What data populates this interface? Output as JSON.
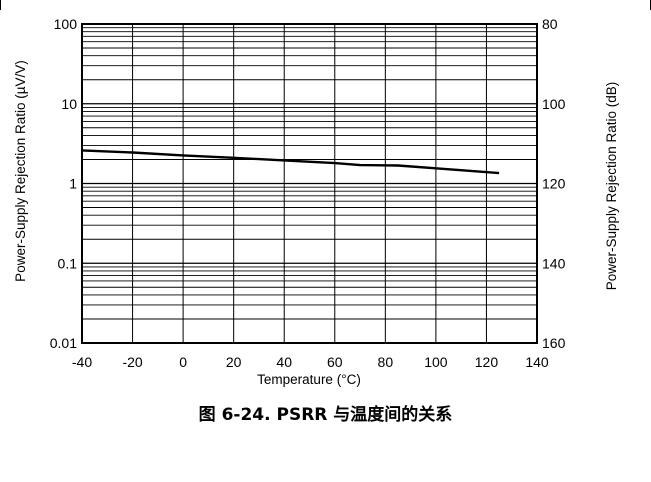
{
  "caption": "图 6-24. PSRR 与温度间的关系",
  "chart_data": {
    "type": "line",
    "xlabel": "Temperature (°C)",
    "ylabel": "Power-Supply Rejection Ratio (µV/V)",
    "ylabel_right": "Power-Supply Rejection Ratio (dB)",
    "xlim": [
      -40,
      140
    ],
    "ylim": [
      0.01,
      100
    ],
    "yscale": "log",
    "x_ticks": [
      "-40",
      "-20",
      "0",
      "20",
      "40",
      "60",
      "80",
      "100",
      "120",
      "140"
    ],
    "y_ticks": [
      "0.01",
      "0.1",
      "1",
      "10",
      "100"
    ],
    "y_ticks_right": [
      "160",
      "140",
      "120",
      "100",
      "80"
    ],
    "grid": true,
    "series": [
      {
        "x": [
          -40,
          -20,
          0,
          20,
          40,
          60,
          70,
          85,
          100,
          125
        ],
        "y": [
          2.6,
          2.45,
          2.25,
          2.1,
          1.95,
          1.8,
          1.7,
          1.68,
          1.55,
          1.35
        ]
      }
    ]
  }
}
